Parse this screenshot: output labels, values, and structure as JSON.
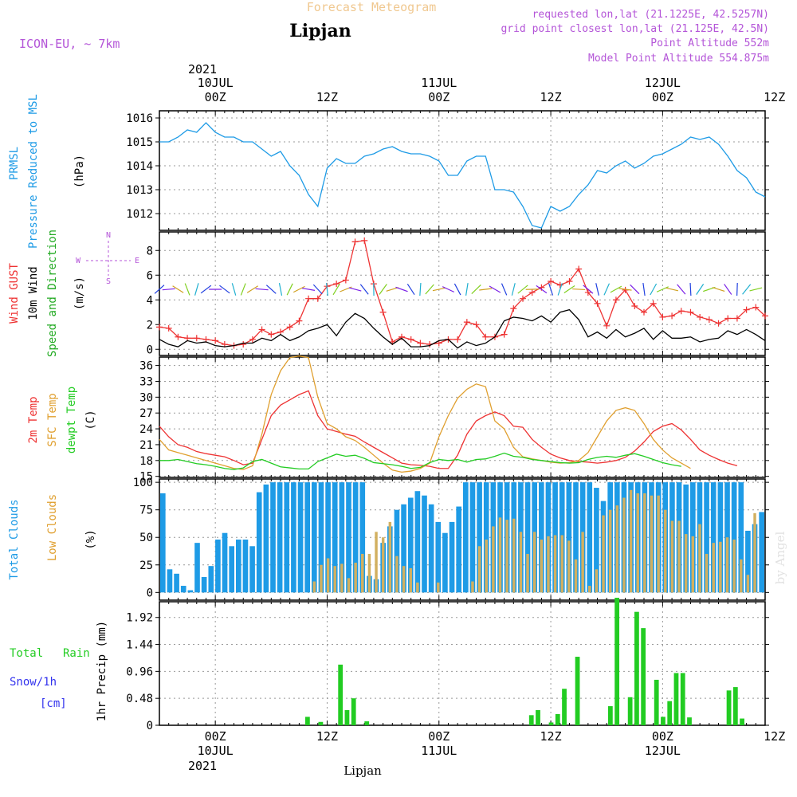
{
  "header": {
    "subtitle": "Forecast Meteogram",
    "location": "Lipjan",
    "model": "ICON-EU, ~ 7km",
    "requested": "requested lon,lat (21.1225E, 42.5257N)",
    "gridpoint": "grid point closest lon,lat (21.125E, 42.5N)",
    "point_alt": "Point Altitude 552m",
    "model_alt": "Model Point Altitude 554.875m"
  },
  "time_axis": {
    "top_year": "2021",
    "top_labels": [
      [
        "10JUL",
        "00Z"
      ],
      [
        "",
        "12Z"
      ],
      [
        "11JUL",
        "00Z"
      ],
      [
        "",
        "12Z"
      ],
      [
        "12JUL",
        "00Z"
      ],
      [
        "",
        "12Z"
      ]
    ],
    "bottom_labels": [
      [
        "00Z",
        "10JUL"
      ],
      [
        "12Z",
        ""
      ],
      [
        "00Z",
        "11JUL"
      ],
      [
        "12Z",
        ""
      ],
      [
        "00Z",
        "12JUL"
      ],
      [
        "12Z",
        ""
      ]
    ],
    "bottom_year": "2021",
    "footer": "Lipjan"
  },
  "labels": {
    "pressure": [
      "PRMSL",
      "Pressure Reduced to MSL",
      "(hPa)"
    ],
    "wind": [
      "Wind GUST",
      "10m Wind",
      "Speed and Direction",
      "(m/s)"
    ],
    "compass": [
      "N",
      "S",
      "W",
      "E"
    ],
    "temp": [
      "2m Temp",
      "SFC Temp",
      "dewpt Temp",
      "(C)"
    ],
    "cloud": [
      "Total Clouds",
      "Low Clouds",
      "(%)"
    ],
    "rain": [
      "Total",
      "Rain",
      "Snow/1h",
      "[cm]",
      "1hr Precip (mm)"
    ],
    "watermark": "by Angel"
  },
  "colors": {
    "pressure": "#1e9be6",
    "gust": "#ee3333",
    "wind": "#000000",
    "wind_dir": "#22aa22",
    "temp2m": "#ee3333",
    "sfc": "#e0a030",
    "dewpt": "#22cc22",
    "total_cloud": "#1e9be6",
    "low_cloud": "#d2b060",
    "rain": "#22cc22",
    "header_title": "#f0c890",
    "header_meta": "#b455d8",
    "snow": "#3333ee"
  },
  "chart_data": [
    {
      "type": "line",
      "title": "Pressure Reduced to MSL",
      "ylabel": "(hPa)",
      "x_hours_start": -6,
      "x_hours_end": 59,
      "ylim": [
        1011.3,
        1016.3
      ],
      "yticks": [
        1012,
        1013,
        1014,
        1015,
        1016
      ],
      "series": [
        {
          "name": "PRMSL",
          "x": [
            -6,
            -5,
            -4,
            -3,
            -2,
            -1,
            0,
            1,
            2,
            3,
            4,
            5,
            6,
            7,
            8,
            9,
            10,
            11,
            12,
            13,
            14,
            15,
            16,
            17,
            18,
            19,
            20,
            21,
            22,
            23,
            24,
            25,
            26,
            27,
            28,
            29,
            30,
            31,
            32,
            33,
            34,
            35,
            36,
            37,
            38,
            39,
            40,
            41,
            42,
            43,
            44,
            45,
            46,
            47,
            48,
            49,
            50,
            51,
            52,
            53,
            54,
            55,
            56,
            57,
            58,
            59
          ],
          "values": [
            1015.0,
            1015.0,
            1015.2,
            1015.5,
            1015.4,
            1015.8,
            1015.4,
            1015.2,
            1015.2,
            1015.0,
            1015.0,
            1014.7,
            1014.4,
            1014.6,
            1014.0,
            1013.6,
            1012.8,
            1012.3,
            1013.9,
            1014.3,
            1014.1,
            1014.1,
            1014.4,
            1014.5,
            1014.7,
            1014.8,
            1014.6,
            1014.5,
            1014.5,
            1014.4,
            1014.2,
            1013.6,
            1013.6,
            1014.2,
            1014.4,
            1014.4,
            1013.0,
            1013.0,
            1012.9,
            1012.3,
            1011.5,
            1011.4,
            1012.3,
            1012.1,
            1012.3,
            1012.8,
            1013.2,
            1013.8,
            1013.7,
            1014.0,
            1014.2,
            1013.9,
            1014.1,
            1014.4,
            1014.5,
            1014.7,
            1014.9,
            1015.2,
            1015.1,
            1015.2,
            1014.9,
            1014.4,
            1013.8,
            1013.5,
            1012.9,
            1012.7
          ]
        }
      ]
    },
    {
      "type": "line",
      "title": "Wind GUST / 10m Wind Speed and Direction",
      "ylabel": "(m/s)",
      "ylim": [
        -0.5,
        9.5
      ],
      "yticks": [
        0,
        2,
        4,
        6,
        8
      ],
      "series": [
        {
          "name": "Wind GUST",
          "values": [
            1.8,
            1.7,
            1.0,
            0.9,
            0.9,
            0.8,
            0.7,
            0.4,
            0.3,
            0.4,
            0.8,
            1.6,
            1.2,
            1.4,
            1.8,
            2.3,
            4.1,
            4.1,
            5.1,
            5.3,
            5.6,
            8.7,
            8.8,
            5.3,
            3.0,
            0.6,
            1.0,
            0.8,
            0.5,
            0.4,
            0.5,
            0.8,
            0.8,
            2.2,
            2.0,
            1.0,
            1.0,
            1.2,
            3.3,
            4.1,
            4.6,
            5.0,
            5.5,
            5.2,
            5.5,
            6.5,
            4.6,
            3.7,
            1.9,
            4.0,
            4.8,
            3.5,
            3.0,
            3.7,
            2.6,
            2.7,
            3.1,
            3.0,
            2.6,
            2.4,
            2.1,
            2.5,
            2.5,
            3.2,
            3.4,
            2.7
          ]
        },
        {
          "name": "10m Wind",
          "values": [
            0.8,
            0.4,
            0.2,
            0.7,
            0.5,
            0.6,
            0.3,
            0.2,
            0.3,
            0.5,
            0.5,
            0.9,
            0.7,
            1.2,
            0.7,
            1.0,
            1.5,
            1.7,
            2.0,
            1.1,
            2.2,
            2.9,
            2.5,
            1.7,
            1.0,
            0.4,
            0.9,
            0.2,
            0.2,
            0.3,
            0.7,
            0.8,
            0.1,
            0.6,
            0.3,
            0.5,
            1.0,
            2.3,
            2.6,
            2.5,
            2.3,
            2.7,
            2.2,
            3.0,
            3.2,
            2.4,
            1.0,
            1.4,
            0.9,
            1.6,
            1.0,
            1.3,
            1.7,
            0.8,
            1.5,
            0.9,
            0.9,
            1.0,
            0.6,
            0.8,
            0.9,
            1.5,
            1.2,
            1.6,
            1.2,
            0.7
          ]
        }
      ]
    },
    {
      "type": "line",
      "title": "2m Temp / SFC Temp / dewpt Temp",
      "ylabel": "(C)",
      "ylim": [
        14.8,
        37.6
      ],
      "yticks": [
        15,
        18,
        21,
        24,
        27,
        30,
        33,
        36
      ],
      "series": [
        {
          "name": "2m Temp",
          "values": [
            24.5,
            22.5,
            21,
            20.5,
            19.7,
            19.3,
            19,
            18.7,
            18,
            17.2,
            17.5,
            22,
            26.5,
            28.5,
            29.5,
            30.5,
            31.2,
            26.5,
            24,
            23.5,
            23,
            22.6,
            21.5,
            20.5,
            19.5,
            18.5,
            17.5,
            17.2,
            17.1,
            16.9,
            16.5,
            16.5,
            19,
            23,
            25.5,
            26.5,
            27.2,
            26.5,
            24.5,
            24.3,
            22,
            20.5,
            19.2,
            18.5,
            18,
            17.8,
            17.7,
            17.5,
            17.7,
            18,
            18.6,
            19.8,
            21.5,
            23.5,
            24.5,
            25,
            23.8,
            22,
            20,
            19,
            18.2,
            17.5,
            17
          ],
          "x": [
            -6,
            -5,
            -4,
            -3,
            -2,
            -1,
            0,
            1,
            2,
            3,
            4,
            5,
            6,
            7,
            8,
            9,
            10,
            11,
            12,
            13,
            14,
            15,
            16,
            17,
            18,
            19,
            20,
            21,
            22,
            23,
            24,
            25,
            26,
            27,
            28,
            29,
            30,
            31,
            32,
            33,
            34,
            35,
            36,
            37,
            38,
            39,
            40,
            41,
            42,
            43,
            44,
            45,
            46,
            47,
            48,
            49,
            50,
            51,
            52,
            53,
            54,
            55,
            56
          ]
        },
        {
          "name": "SFC Temp",
          "values": [
            22,
            20,
            19.5,
            19,
            18.5,
            18,
            17.5,
            17,
            16.5,
            16.3,
            17,
            23,
            30.5,
            35,
            37.5,
            37.8,
            37.5,
            30,
            25,
            24,
            22.5,
            21.8,
            20.5,
            19,
            17.5,
            16.2,
            15.8,
            16,
            16.5,
            17.5,
            22.5,
            26.5,
            29.8,
            31.5,
            32.5,
            32,
            25.5,
            24,
            20.5,
            18.7,
            18.3,
            18,
            17.7,
            17.5,
            17.6,
            18,
            19.5,
            22.5,
            25.5,
            27.5,
            28,
            27.5,
            25,
            22,
            20,
            18.5,
            17.5,
            16.5
          ],
          "x": [
            -6,
            -5,
            -4,
            -3,
            -2,
            -1,
            0,
            1,
            2,
            3,
            4,
            5,
            6,
            7,
            8,
            9,
            10,
            11,
            12,
            13,
            14,
            15,
            16,
            17,
            18,
            19,
            20,
            21,
            22,
            23,
            24,
            25,
            26,
            27,
            28,
            29,
            30,
            31,
            32,
            33,
            34,
            35,
            36,
            37,
            38,
            39,
            40,
            41,
            42,
            43,
            44,
            45,
            46,
            47,
            48,
            49,
            50,
            51
          ]
        },
        {
          "name": "dewpt Temp",
          "values": [
            18,
            18,
            18.2,
            17.8,
            17.4,
            17.2,
            16.9,
            16.5,
            16.3,
            16.6,
            17.8,
            18.2,
            17.5,
            16.8,
            16.6,
            16.4,
            16.4,
            17.8,
            18.5,
            19.2,
            18.8,
            19,
            18.4,
            17.6,
            17.4,
            17.2,
            16.9,
            16.5,
            16.7,
            17.6,
            18.2,
            18,
            18.2,
            17.7,
            18.2,
            18.3,
            18.8,
            19.4,
            18.8,
            18.6,
            18.2,
            18,
            17.8,
            17.6,
            17.5,
            17.6,
            18.2,
            18.6,
            18.8,
            18.6,
            19,
            19.3,
            18.8,
            18.2,
            17.6,
            17.2,
            16.9
          ],
          "x": [
            -6,
            -5,
            -4,
            -3,
            -2,
            -1,
            0,
            1,
            2,
            3,
            4,
            5,
            6,
            7,
            8,
            9,
            10,
            11,
            12,
            13,
            14,
            15,
            16,
            17,
            18,
            19,
            20,
            21,
            22,
            23,
            24,
            25,
            26,
            27,
            28,
            29,
            30,
            31,
            32,
            33,
            34,
            35,
            36,
            37,
            38,
            39,
            40,
            41,
            42,
            43,
            44,
            45,
            46,
            47,
            48,
            49,
            50
          ]
        }
      ]
    },
    {
      "type": "bar",
      "title": "Total Clouds / Low Clouds",
      "ylabel": "(%)",
      "ylim": [
        -7,
        103
      ],
      "yticks": [
        0,
        25,
        50,
        75,
        100
      ],
      "series": [
        {
          "name": "Total Clouds",
          "values": [
            90,
            21,
            17,
            6,
            2,
            45,
            14,
            24,
            48,
            54,
            42,
            48,
            48,
            42,
            91,
            98,
            100,
            100,
            100,
            100,
            100,
            100,
            100,
            100,
            100,
            100,
            100,
            100,
            100,
            100,
            15,
            12,
            45,
            60,
            75,
            80,
            86,
            92,
            88,
            80,
            64,
            54,
            64,
            78,
            100,
            100,
            100,
            100,
            100,
            100,
            100,
            100,
            100,
            100,
            100,
            100,
            100,
            100,
            100,
            100,
            100,
            100,
            100,
            95,
            83,
            100,
            100,
            100,
            100,
            100,
            100,
            100,
            100,
            100,
            100,
            100,
            98,
            100,
            100,
            100,
            100,
            100,
            100,
            100,
            100,
            56,
            62,
            73
          ]
        },
        {
          "name": "Low Clouds",
          "values": [
            0,
            0,
            0,
            0,
            0,
            0,
            0,
            0,
            10,
            25,
            31,
            24,
            26,
            13,
            27,
            35,
            35,
            55,
            50,
            64,
            33,
            24,
            22,
            9,
            0,
            0,
            9,
            0,
            0,
            0,
            0,
            10,
            42,
            48,
            60,
            68,
            66,
            67,
            55,
            35,
            55,
            48,
            51,
            52,
            52,
            47,
            30,
            55,
            6,
            21,
            70,
            75,
            79,
            86,
            93,
            90,
            90,
            88,
            88,
            75,
            65,
            65,
            53,
            51,
            62,
            35,
            45,
            46,
            50,
            48,
            30,
            16,
            72
          ]
        }
      ]
    },
    {
      "type": "bar",
      "title": "1hr Precip (mm)",
      "ylabel": "1hr Precip (mm)",
      "ylim": [
        0,
        2.2
      ],
      "yticks": [
        0,
        0.48,
        0.96,
        1.44,
        1.92
      ],
      "series": [
        {
          "name": "Total Rain",
          "values": [
            0,
            0,
            0,
            0,
            0,
            0,
            0,
            0,
            0,
            0,
            0,
            0,
            0,
            0,
            0,
            0,
            0,
            0,
            0,
            0,
            0,
            0,
            0.15,
            0,
            0.06,
            0,
            0,
            1.08,
            0.27,
            0.48,
            0,
            0.07,
            0,
            0,
            0,
            0,
            0,
            0,
            0,
            0,
            0,
            0,
            0,
            0,
            0,
            0,
            0,
            0,
            0,
            0,
            0,
            0,
            0,
            0,
            0,
            0,
            0.18,
            0.27,
            0,
            0.05,
            0.2,
            0.65,
            0,
            1.22,
            0,
            0,
            0,
            0,
            0.34,
            2.27,
            0,
            0.5,
            2.02,
            1.73,
            0,
            0.81,
            0.15,
            0.43,
            0.93,
            0.93,
            0.14,
            0,
            0,
            0,
            0,
            0,
            0.62,
            0.68,
            0.12,
            0,
            0,
            0
          ]
        }
      ]
    }
  ]
}
